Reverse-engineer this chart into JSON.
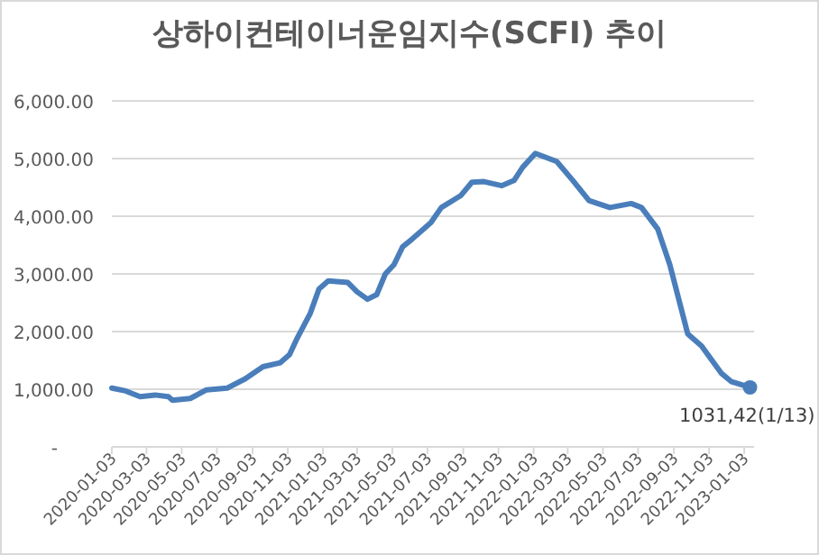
{
  "chart_data": {
    "type": "line",
    "title": "상하이컨테이너운임지수(SCFI) 추이",
    "x": [
      "2020-01-03",
      "2020-01-27",
      "2020-02-21",
      "2020-03-18",
      "2020-04-10",
      "2020-04-17",
      "2020-05-18",
      "2020-06-15",
      "2020-07-21",
      "2020-08-21",
      "2020-09-21",
      "2020-10-21",
      "2020-11-06",
      "2020-11-18",
      "2020-12-12",
      "2020-12-27",
      "2021-01-12",
      "2021-02-15",
      "2021-03-03",
      "2021-03-21",
      "2021-04-06",
      "2021-04-21",
      "2021-05-06",
      "2021-05-21",
      "2021-06-06",
      "2021-07-09",
      "2021-07-27",
      "2021-08-30",
      "2021-09-18",
      "2021-10-09",
      "2021-11-09",
      "2021-11-30",
      "2021-12-15",
      "2022-01-06",
      "2022-02-12",
      "2022-03-12",
      "2022-04-09",
      "2022-05-15",
      "2022-06-21",
      "2022-07-09",
      "2022-08-06",
      "2022-08-27",
      "2022-09-27",
      "2022-10-21",
      "2022-11-24",
      "2022-12-12",
      "2023-01-13"
    ],
    "series": [
      {
        "color": "#4a7ebb",
        "values": [
          1020,
          970,
          870,
          900,
          870,
          810,
          840,
          990,
          1020,
          1180,
          1390,
          1460,
          1600,
          1860,
          2320,
          2740,
          2880,
          2850,
          2690,
          2560,
          2640,
          3000,
          3160,
          3470,
          3600,
          3890,
          4150,
          4360,
          4590,
          4600,
          4530,
          4620,
          4850,
          5090,
          4950,
          4620,
          4270,
          4150,
          4220,
          4150,
          3780,
          3160,
          1960,
          1750,
          1280,
          1130,
          1031.42
        ]
      }
    ],
    "xlim": [
      "2020-01-03",
      "2023-01-20"
    ],
    "xticks": [
      "2020-01-03",
      "2020-03-03",
      "2020-05-03",
      "2020-07-03",
      "2020-09-03",
      "2020-11-03",
      "2021-01-03",
      "2021-03-03",
      "2021-05-03",
      "2021-07-03",
      "2021-09-03",
      "2021-11-03",
      "2022-01-03",
      "2022-03-03",
      "2022-05-03",
      "2022-07-03",
      "2022-09-03",
      "2022-11-03",
      "2023-01-03"
    ],
    "ylim": [
      0,
      6000
    ],
    "yticks": [
      {
        "value": 0,
        "label": "-"
      },
      {
        "value": 1000,
        "label": "1,000.00"
      },
      {
        "value": 2000,
        "label": "2,000.00"
      },
      {
        "value": 3000,
        "label": "3,000.00"
      },
      {
        "value": 4000,
        "label": "4,000.00"
      },
      {
        "value": 5000,
        "label": "5,000.00"
      },
      {
        "value": 6000,
        "label": "6,000.00"
      }
    ],
    "grid": "y",
    "annotations": [
      {
        "text": "1031,42(1/13)",
        "x": "2023-01-13",
        "y": 1031.42
      }
    ]
  }
}
